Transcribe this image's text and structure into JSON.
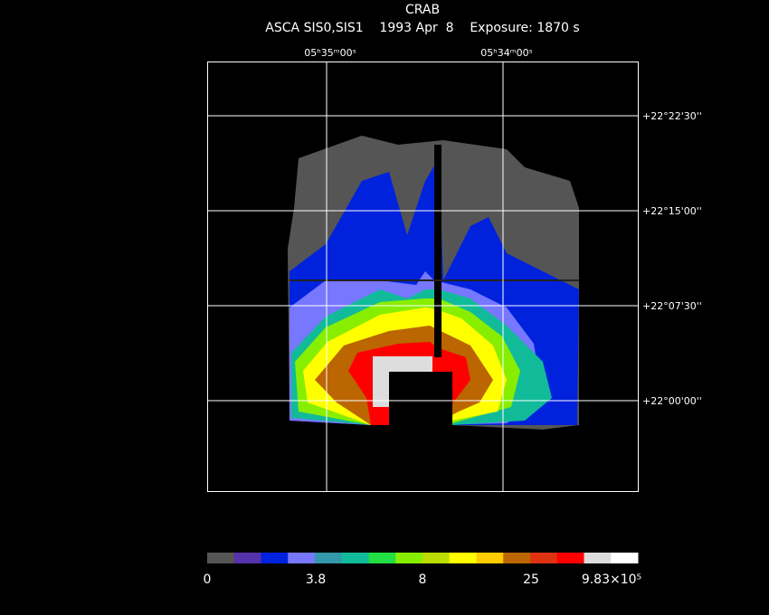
{
  "header": {
    "title": "CRAB",
    "subtitle": "ASCA SIS0,SIS1    1993 Apr  8    Exposure: 1870 s"
  },
  "ra_labels": [
    "05ʰ35ᵐ00ˢ",
    "05ʰ34ᵐ00ˢ"
  ],
  "dec_labels": [
    "+22°22'30''",
    "+22°15'00''",
    "+22°07'30''",
    "+22°00'00''"
  ],
  "colorbar": {
    "labels": [
      "0",
      "3.8",
      "8",
      "25",
      "9.83×10⁵"
    ],
    "colors": [
      "#555555",
      "#5533aa",
      "#0022dd",
      "#7777ff",
      "#3399aa",
      "#11bb99",
      "#22dd44",
      "#88ee00",
      "#bbdd00",
      "#ffff00",
      "#ffcc00",
      "#bb6600",
      "#dd3311",
      "#ff0000",
      "#dddddd",
      "#ffffff"
    ]
  }
}
